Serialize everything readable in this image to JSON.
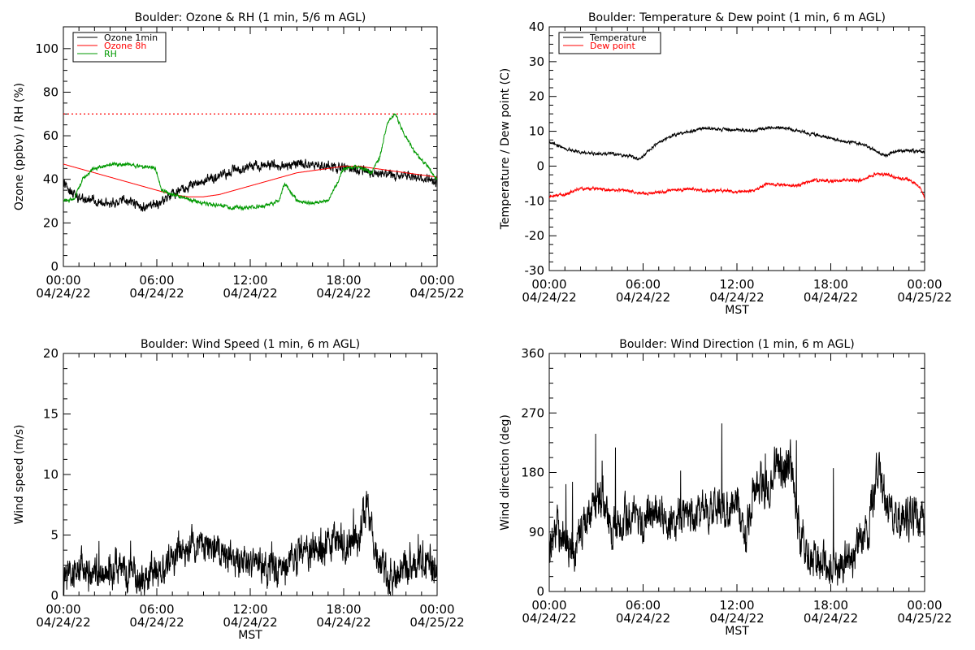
{
  "chart_data": [
    {
      "type": "line",
      "title": "Boulder: Ozone & RH (1 min, 5/6 m AGL)",
      "ylabel": "Ozone (ppbv) / RH (%)",
      "xlabel": "",
      "ylim": [
        0,
        110
      ],
      "yticks": [
        0,
        20,
        40,
        60,
        80,
        100
      ],
      "xticks": [
        {
          "time": "00:00",
          "date": "04/24/22"
        },
        {
          "time": "06:00",
          "date": "04/24/22"
        },
        {
          "time": "12:00",
          "date": "04/24/22"
        },
        {
          "time": "18:00",
          "date": "04/24/22"
        },
        {
          "time": "00:00",
          "date": "04/25/22"
        }
      ],
      "xlim_hours": [
        0,
        24
      ],
      "legend": {
        "position": "top-left",
        "box": true
      },
      "reference_line": {
        "y": 70,
        "style": "dotted",
        "color": "#ff0000"
      },
      "series": [
        {
          "name": "Ozone 1min",
          "color": "#000000",
          "noise": 1.5,
          "x": [
            0,
            1,
            2,
            3,
            4,
            5,
            6,
            7,
            8,
            9,
            10,
            11,
            12,
            13,
            14,
            15,
            16,
            17,
            18,
            19,
            20,
            21,
            22,
            23,
            24
          ],
          "y": [
            38,
            31,
            30,
            29,
            31,
            27,
            28,
            33,
            37,
            39,
            42,
            44,
            46,
            47,
            46,
            47,
            47,
            46,
            45,
            44,
            43,
            42,
            41,
            40,
            39
          ]
        },
        {
          "name": "Ozone 8h",
          "color": "#ff0000",
          "noise": 0,
          "x": [
            0,
            1,
            2,
            3,
            4,
            5,
            6,
            7,
            8,
            9,
            10,
            11,
            12,
            13,
            14,
            15,
            16,
            17,
            18,
            19,
            20,
            21,
            22,
            23,
            24
          ],
          "y": [
            47,
            45,
            43,
            41,
            39,
            37,
            35,
            33,
            32,
            32,
            33,
            35,
            37,
            39,
            41,
            43,
            44,
            45,
            46,
            46,
            45,
            44,
            43,
            42,
            41
          ]
        },
        {
          "name": "RH",
          "color": "#009900",
          "noise": 0.6,
          "x": [
            0,
            0.7,
            1.2,
            2,
            3,
            4,
            5,
            5.9,
            6.3,
            7,
            8,
            9,
            10,
            11,
            12,
            13,
            13.8,
            14.2,
            15,
            16,
            17,
            17.5,
            18,
            19,
            19.8,
            20.3,
            20.8,
            21.3,
            21.8,
            22.5,
            23,
            23.5,
            24
          ],
          "y": [
            30,
            31,
            40,
            45,
            47,
            47,
            46,
            45,
            35,
            33,
            31,
            29,
            28,
            27,
            27,
            28,
            30,
            38,
            30,
            29,
            30,
            37,
            45,
            46,
            43,
            50,
            66,
            70,
            62,
            53,
            49,
            45,
            40
          ]
        }
      ]
    },
    {
      "type": "line",
      "title": "Boulder: Temperature & Dew point (1 min, 6 m AGL)",
      "ylabel": "Temperature / Dew point (C)",
      "xlabel": "MST",
      "ylim": [
        -30,
        40
      ],
      "yticks": [
        -30,
        -20,
        -10,
        0,
        10,
        20,
        30,
        40
      ],
      "xticks": [
        {
          "time": "00:00",
          "date": "04/24/22"
        },
        {
          "time": "06:00",
          "date": "04/24/22"
        },
        {
          "time": "12:00",
          "date": "04/24/22"
        },
        {
          "time": "18:00",
          "date": "04/24/22"
        },
        {
          "time": "00:00",
          "date": "04/25/22"
        }
      ],
      "xlim_hours": [
        0,
        24
      ],
      "legend": {
        "position": "top-left",
        "box": true
      },
      "series": [
        {
          "name": "Temperature",
          "color": "#000000",
          "noise": 0.3,
          "x": [
            0,
            1,
            2,
            3,
            4,
            5,
            5.8,
            6.5,
            7,
            8,
            9,
            10,
            11,
            12,
            13,
            14,
            15,
            16,
            17,
            18,
            19,
            20,
            21,
            21.5,
            22,
            23,
            24
          ],
          "y": [
            7,
            5,
            4,
            3.5,
            3.5,
            3,
            2,
            5,
            7,
            9,
            10,
            11,
            10.5,
            10.5,
            10,
            11,
            11,
            10,
            9,
            8,
            7,
            6.5,
            4,
            3,
            4,
            4.5,
            4
          ]
        },
        {
          "name": "Dew point",
          "color": "#ff0000",
          "noise": 0.3,
          "x": [
            0,
            1,
            2,
            3,
            4,
            5,
            6,
            7,
            8,
            9,
            10,
            11,
            12,
            13,
            14,
            15,
            16,
            17,
            18,
            19,
            20,
            21,
            22,
            23,
            23.7,
            24
          ],
          "y": [
            -9,
            -8,
            -6.5,
            -6.5,
            -7,
            -7,
            -8,
            -7.5,
            -7,
            -6.5,
            -7,
            -7,
            -7.5,
            -7,
            -5,
            -5.5,
            -5.5,
            -4,
            -4.5,
            -4,
            -4,
            -2,
            -3,
            -4,
            -6,
            -9
          ]
        }
      ]
    },
    {
      "type": "line",
      "title": "Boulder: Wind Speed (1 min, 6 m AGL)",
      "ylabel": "Wind speed (m/s)",
      "xlabel": "MST",
      "ylim": [
        0,
        20
      ],
      "yticks": [
        0,
        5,
        10,
        15,
        20
      ],
      "xticks": [
        {
          "time": "00:00",
          "date": "04/24/22"
        },
        {
          "time": "06:00",
          "date": "04/24/22"
        },
        {
          "time": "12:00",
          "date": "04/24/22"
        },
        {
          "time": "18:00",
          "date": "04/24/22"
        },
        {
          "time": "00:00",
          "date": "04/25/22"
        }
      ],
      "xlim_hours": [
        0,
        24
      ],
      "series": [
        {
          "name": "",
          "color": "#000000",
          "noise": 1.0,
          "x": [
            0,
            1,
            2,
            3,
            4,
            5,
            6,
            7,
            8,
            9,
            10,
            11,
            12,
            13,
            14,
            15,
            16,
            17,
            17.5,
            18,
            19,
            19.5,
            19.8,
            20,
            21,
            22,
            23,
            24
          ],
          "y": [
            1.5,
            2,
            2,
            2,
            2,
            1.5,
            2,
            3,
            4,
            4,
            3.5,
            3,
            2.5,
            2.5,
            2,
            3,
            4,
            4,
            5,
            4,
            5,
            8,
            5,
            3,
            1.5,
            2,
            3,
            2
          ]
        }
      ]
    },
    {
      "type": "line",
      "title": "Boulder: Wind Direction (1 min, 6 m AGL)",
      "ylabel": "Wind direction (deg)",
      "xlabel": "MST",
      "ylim": [
        0,
        360
      ],
      "yticks": [
        0,
        90,
        180,
        270,
        360
      ],
      "xticks": [
        {
          "time": "00:00",
          "date": "04/24/22"
        },
        {
          "time": "06:00",
          "date": "04/24/22"
        },
        {
          "time": "12:00",
          "date": "04/24/22"
        },
        {
          "time": "18:00",
          "date": "04/24/22"
        },
        {
          "time": "00:00",
          "date": "04/25/22"
        }
      ],
      "xlim_hours": [
        0,
        24
      ],
      "series": [
        {
          "name": "",
          "color": "#000000",
          "noise": 22,
          "x": [
            0,
            0.5,
            1,
            1.5,
            2,
            3,
            3.5,
            4,
            5,
            6,
            7,
            8,
            9,
            10,
            11,
            11.5,
            12,
            12.5,
            13,
            13.5,
            14,
            14.5,
            15,
            15.5,
            16,
            17,
            18,
            19,
            19.5,
            20,
            20.5,
            21,
            21.5,
            22,
            23,
            24
          ],
          "y": [
            70,
            95,
            80,
            60,
            100,
            135,
            140,
            90,
            115,
            105,
            110,
            110,
            115,
            120,
            130,
            110,
            150,
            70,
            150,
            160,
            150,
            200,
            180,
            200,
            80,
            45,
            35,
            40,
            60,
            80,
            110,
            190,
            145,
            105,
            110,
            115
          ]
        }
      ]
    }
  ]
}
